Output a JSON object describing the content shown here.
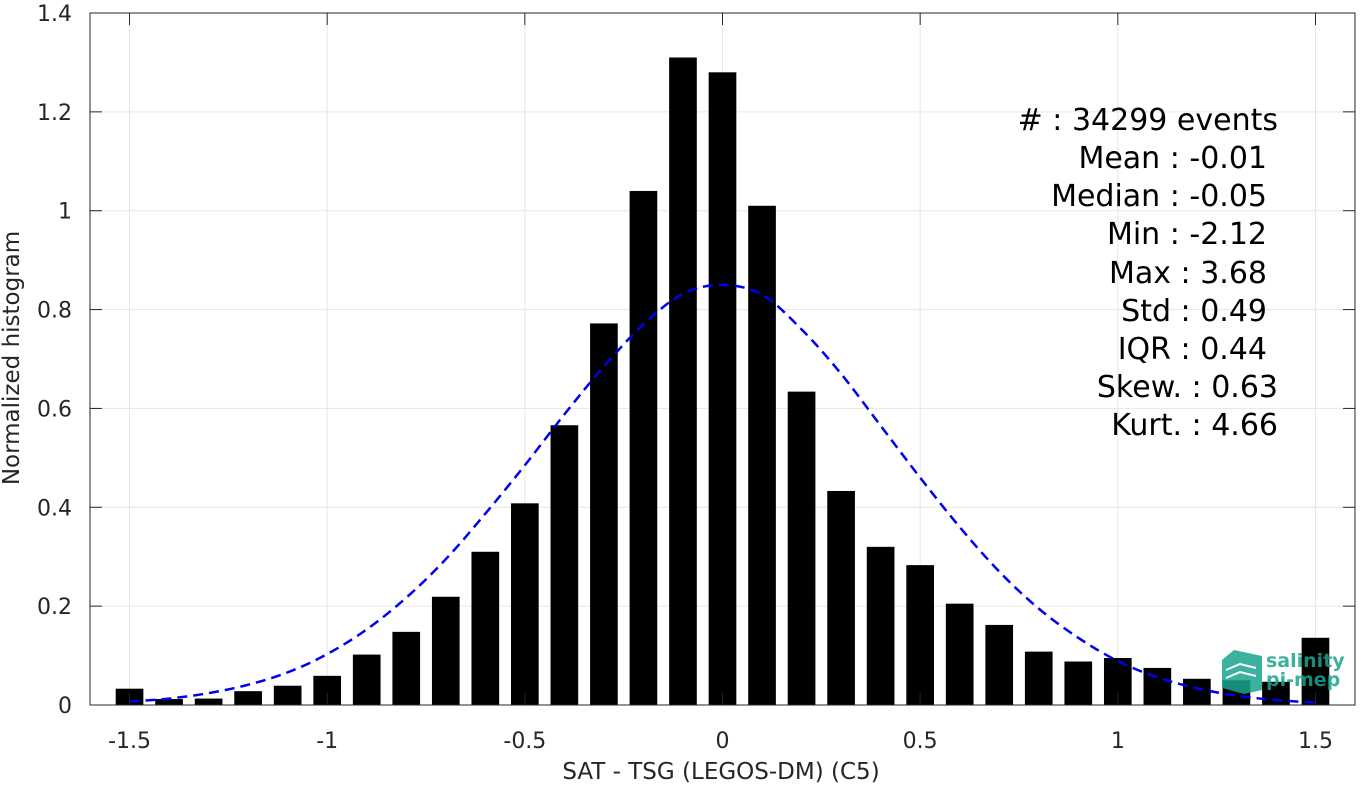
{
  "chart_data": {
    "type": "bar",
    "xlabel": "SAT - TSG (LEGOS-DM) (C5)",
    "ylabel": "Normalized histogram",
    "xlim": [
      -1.6,
      1.6
    ],
    "ylim": [
      0,
      1.4
    ],
    "x_ticks": [
      -1.5,
      -1,
      -0.5,
      0,
      0.5,
      1,
      1.5
    ],
    "x_tick_labels": [
      "-1.5",
      "-1",
      "-0.5",
      "0",
      "0.5",
      "1",
      "1.5"
    ],
    "y_ticks": [
      0,
      0.2,
      0.4,
      0.6,
      0.8,
      1,
      1.2,
      1.4
    ],
    "y_tick_labels": [
      "0",
      "0.2",
      "0.4",
      "0.6",
      "0.8",
      "1",
      "1.2",
      "1.4"
    ],
    "grid": true,
    "bar_width": 0.07,
    "bins": {
      "x": [
        -1.5,
        -1.4,
        -1.3,
        -1.2,
        -1.1,
        -1.0,
        -0.9,
        -0.8,
        -0.7,
        -0.6,
        -0.5,
        -0.4,
        -0.3,
        -0.2,
        -0.1,
        0.0,
        0.1,
        0.2,
        0.3,
        0.4,
        0.5,
        0.6,
        0.7,
        0.8,
        0.9,
        1.0,
        1.1,
        1.2,
        1.3,
        1.4,
        1.5
      ],
      "values": [
        0.033,
        0.012,
        0.013,
        0.028,
        0.039,
        0.059,
        0.102,
        0.148,
        0.219,
        0.31,
        0.408,
        0.566,
        0.772,
        1.04,
        1.31,
        1.28,
        1.01,
        0.634,
        0.433,
        0.32,
        0.283,
        0.205,
        0.162,
        0.108,
        0.088,
        0.095,
        0.075,
        0.053,
        0.05,
        0.047,
        0.136
      ],
      "color": "#000000"
    },
    "fit_curve": {
      "style": "dashed",
      "color": "#0000ee",
      "x": [
        -1.5,
        -1.4,
        -1.3,
        -1.2,
        -1.1,
        -1.0,
        -0.9,
        -0.8,
        -0.7,
        -0.6,
        -0.5,
        -0.4,
        -0.3,
        -0.2,
        -0.1,
        0.0,
        0.1,
        0.2,
        0.3,
        0.4,
        0.5,
        0.6,
        0.7,
        0.8,
        0.9,
        1.0,
        1.1,
        1.2,
        1.3,
        1.4,
        1.5
      ],
      "y": [
        0.007,
        0.013,
        0.024,
        0.041,
        0.066,
        0.103,
        0.153,
        0.217,
        0.295,
        0.387,
        0.485,
        0.588,
        0.685,
        0.77,
        0.832,
        0.85,
        0.83,
        0.76,
        0.67,
        0.565,
        0.46,
        0.36,
        0.27,
        0.195,
        0.136,
        0.089,
        0.056,
        0.034,
        0.019,
        0.01,
        0.005
      ]
    },
    "stats": [
      {
        "label": "#  : 34299 events"
      },
      {
        "label": "Mean : -0.01"
      },
      {
        "label": "Median : -0.05"
      },
      {
        "label": "Min : -2.12"
      },
      {
        "label": "Max : 3.68"
      },
      {
        "label": "Std : 0.49"
      },
      {
        "label": "IQR : 0.44"
      },
      {
        "label": "Skew. : 0.63"
      },
      {
        "label": "Kurt. : 4.66"
      }
    ]
  },
  "logo": {
    "line1": "salinity",
    "line2": "pi-mep",
    "color": "#1aa58e"
  }
}
